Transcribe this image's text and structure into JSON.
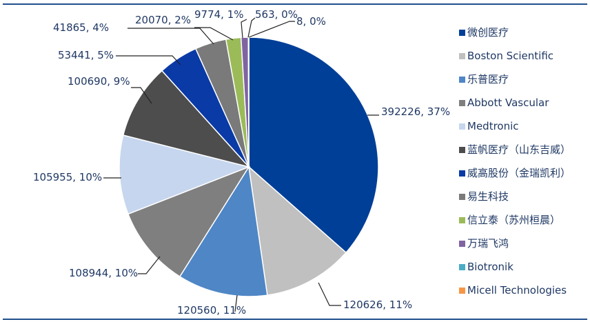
{
  "chart_data": {
    "type": "pie",
    "legend_position": "right",
    "slices": [
      {
        "name": "微创医疗",
        "value": 392226,
        "percent": "37%",
        "color": "#003f97"
      },
      {
        "name": "Boston Scientific",
        "value": 120626,
        "percent": "11%",
        "color": "#c0c0c0"
      },
      {
        "name": "乐普医疗",
        "value": 120560,
        "percent": "11%",
        "color": "#4f86c6"
      },
      {
        "name": "Abbott Vascular",
        "value": 108944,
        "percent": "10%",
        "color": "#7f7f7f"
      },
      {
        "name": "Medtronic",
        "value": 105955,
        "percent": "10%",
        "color": "#c6d6ee"
      },
      {
        "name": "蓝帆医疗（山东吉威）",
        "value": 100690,
        "percent": "9%",
        "color": "#4d4d4d"
      },
      {
        "name": "威高股份（金瑞凯利）",
        "value": 53441,
        "percent": "5%",
        "color": "#0a3aa6"
      },
      {
        "name": "易生科技",
        "value": 41865,
        "percent": "4%",
        "color": "#7a7a7a"
      },
      {
        "name": "信立泰（苏州桓晨）",
        "value": 20070,
        "percent": "2%",
        "color": "#9bbb59"
      },
      {
        "name": "万瑞飞鸿",
        "value": 9774,
        "percent": "1%",
        "color": "#8064a2"
      },
      {
        "name": "Biotronik",
        "value": 563,
        "percent": "0%",
        "color": "#4bacc6"
      },
      {
        "name": "Micell Technologies",
        "value": 8,
        "percent": "0%",
        "color": "#f79646"
      }
    ],
    "data_labels": [
      "392226, 37%",
      "120626, 11%",
      "120560, 11%",
      "108944, 10%",
      "105955, 10%",
      "100690, 9%",
      "53441, 5%",
      "41865, 4%",
      "20070, 2%",
      "9774, 1%",
      "563, 0%",
      "8, 0%"
    ]
  }
}
